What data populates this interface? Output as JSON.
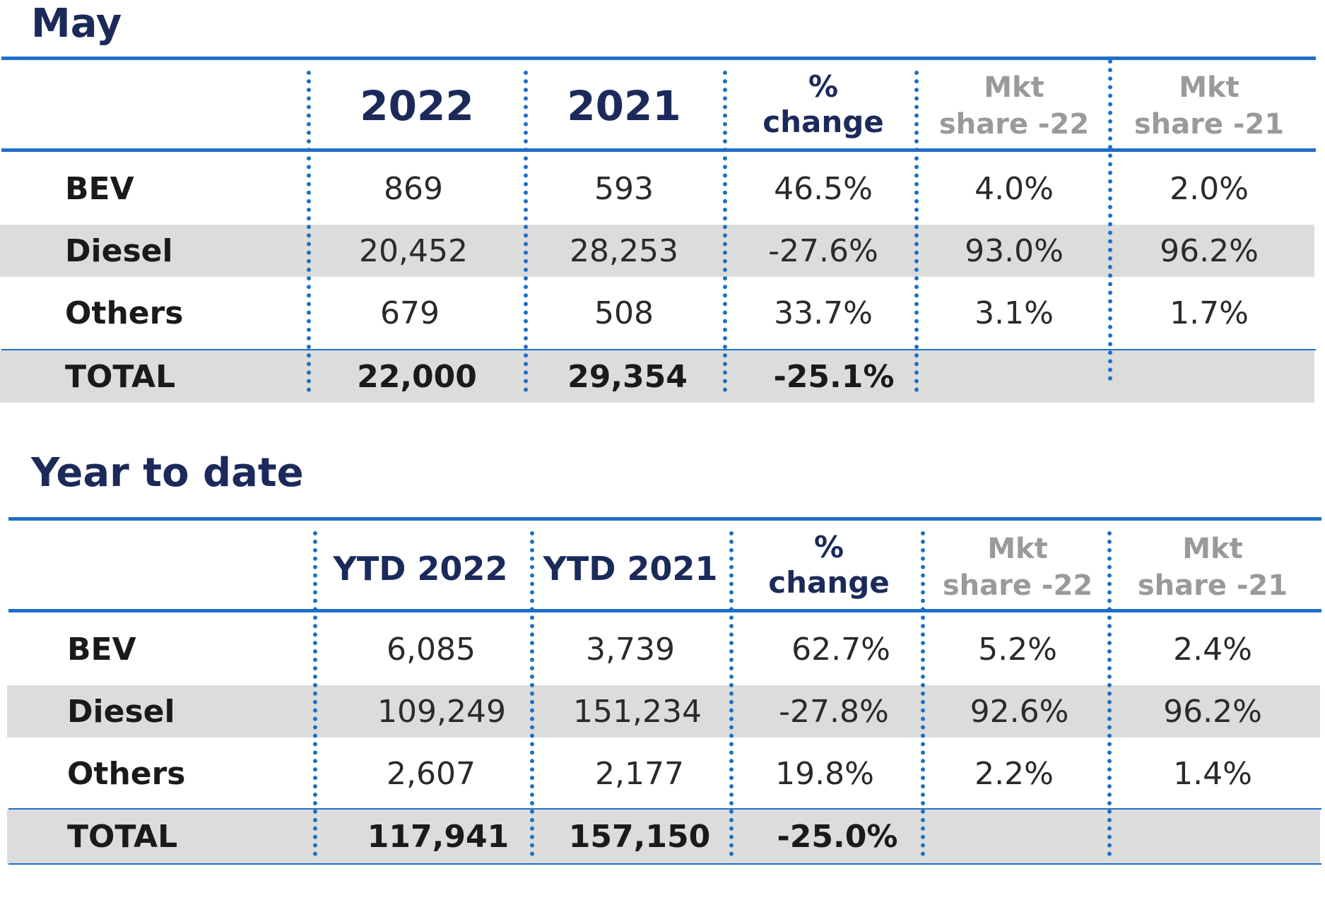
{
  "may": {
    "title": "May",
    "headers": {
      "c1": "2022",
      "c2": "2021",
      "pct_line1": "%",
      "pct_line2": "change",
      "mkt22_line1": "Mkt",
      "mkt22_line2": "share -22",
      "mkt21_line1": "Mkt",
      "mkt21_line2": "share -21"
    },
    "rows": [
      {
        "label": "BEV",
        "c1": "869",
        "c2": "593",
        "pct": "46.5%",
        "mkt22": "4.0%",
        "mkt21": "2.0%"
      },
      {
        "label": "Diesel",
        "c1": "20,452",
        "c2": "28,253",
        "pct": "-27.6%",
        "mkt22": "93.0%",
        "mkt21": "96.2%"
      },
      {
        "label": "Others",
        "c1": "679",
        "c2": "508",
        "pct": "33.7%",
        "mkt22": "3.1%",
        "mkt21": "1.7%"
      }
    ],
    "total": {
      "label": "TOTAL",
      "c1": "22,000",
      "c2": "29,354",
      "pct": "-25.1%"
    }
  },
  "ytd": {
    "title": "Year to date",
    "headers": {
      "c1": "YTD 2022",
      "c2": "YTD 2021",
      "pct_line1": "%",
      "pct_line2": "change",
      "mkt22_line1": "Mkt",
      "mkt22_line2": "share -22",
      "mkt21_line1": "Mkt",
      "mkt21_line2": "share -21"
    },
    "rows": [
      {
        "label": "BEV",
        "c1": "6,085",
        "c2": "3,739",
        "pct": "62.7%",
        "mkt22": "5.2%",
        "mkt21": "2.4%"
      },
      {
        "label": "Diesel",
        "c1": "109,249",
        "c2": "151,234",
        "pct": "-27.8%",
        "mkt22": "92.6%",
        "mkt21": "96.2%"
      },
      {
        "label": "Others",
        "c1": "2,607",
        "c2": "2,177",
        "pct": "19.8%",
        "mkt22": "2.2%",
        "mkt21": "1.4%"
      }
    ],
    "total": {
      "label": "TOTAL",
      "c1": "117,941",
      "c2": "157,150",
      "pct": "-25.0%"
    }
  },
  "colors": {
    "rule": "#1f6fc7",
    "title": "#1b2a5a",
    "band": "#dcdcdc",
    "muted_header": "#9a9a9a"
  }
}
